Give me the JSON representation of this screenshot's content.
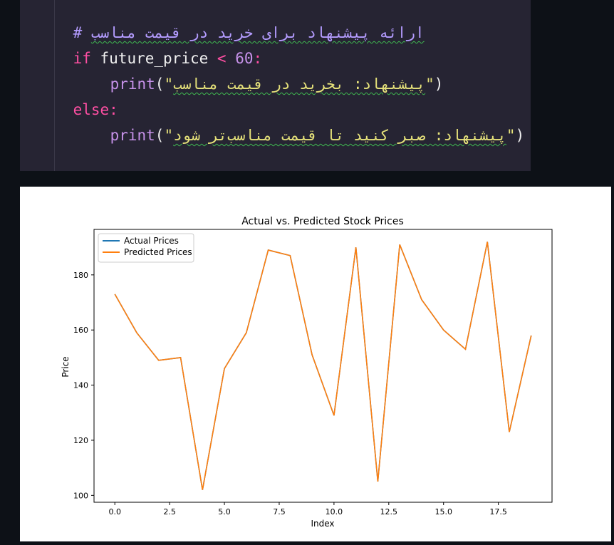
{
  "code": {
    "comment_prefix": "# ",
    "comment_text": "ارائه پیشنهاد برای خرید در قیمت مناسب",
    "if_keyword": "if",
    "condition_var": "future_price",
    "condition_op": "<",
    "condition_value": "60",
    "condition_colon": ":",
    "print_fn": "print",
    "print1_text": "پیشنهاد: بخرید در قیمت مناسب",
    "else_keyword": "else",
    "else_colon": ":",
    "print2_text": "پیشنهاد: صبر کنید تا قیمت مناسب‌تر شود"
  },
  "chart_data": {
    "type": "line",
    "title": "Actual vs. Predicted Stock Prices",
    "xlabel": "Index",
    "ylabel": "Price",
    "x": [
      0,
      1,
      2,
      3,
      4,
      5,
      6,
      7,
      8,
      9,
      10,
      11,
      12,
      13,
      14,
      15,
      16,
      17,
      18,
      19
    ],
    "series": [
      {
        "name": "Actual Prices",
        "color": "#1f77b4",
        "values": [
          173,
          159,
          149,
          150,
          102,
          146,
          159,
          189,
          187,
          151,
          129,
          190,
          105,
          191,
          171,
          160,
          153,
          192,
          123,
          158
        ]
      },
      {
        "name": "Predicted Prices",
        "color": "#ff7f0e",
        "values": [
          173,
          159,
          149,
          150,
          102,
          146,
          159,
          189,
          187,
          151,
          129,
          190,
          105,
          191,
          171,
          160,
          153,
          192,
          123,
          158
        ]
      }
    ],
    "xlim": [
      -0.95,
      19.95
    ],
    "ylim": [
      97.5,
      196.5
    ],
    "xticks": [
      0.0,
      2.5,
      5.0,
      7.5,
      10.0,
      12.5,
      15.0,
      17.5
    ],
    "xtick_labels": [
      "0.0",
      "2.5",
      "5.0",
      "7.5",
      "10.0",
      "12.5",
      "15.0",
      "17.5"
    ],
    "yticks": [
      100,
      120,
      140,
      160,
      180
    ],
    "ytick_labels": [
      "100",
      "120",
      "140",
      "160",
      "180"
    ],
    "grid": false,
    "legend_position": "top-left"
  }
}
